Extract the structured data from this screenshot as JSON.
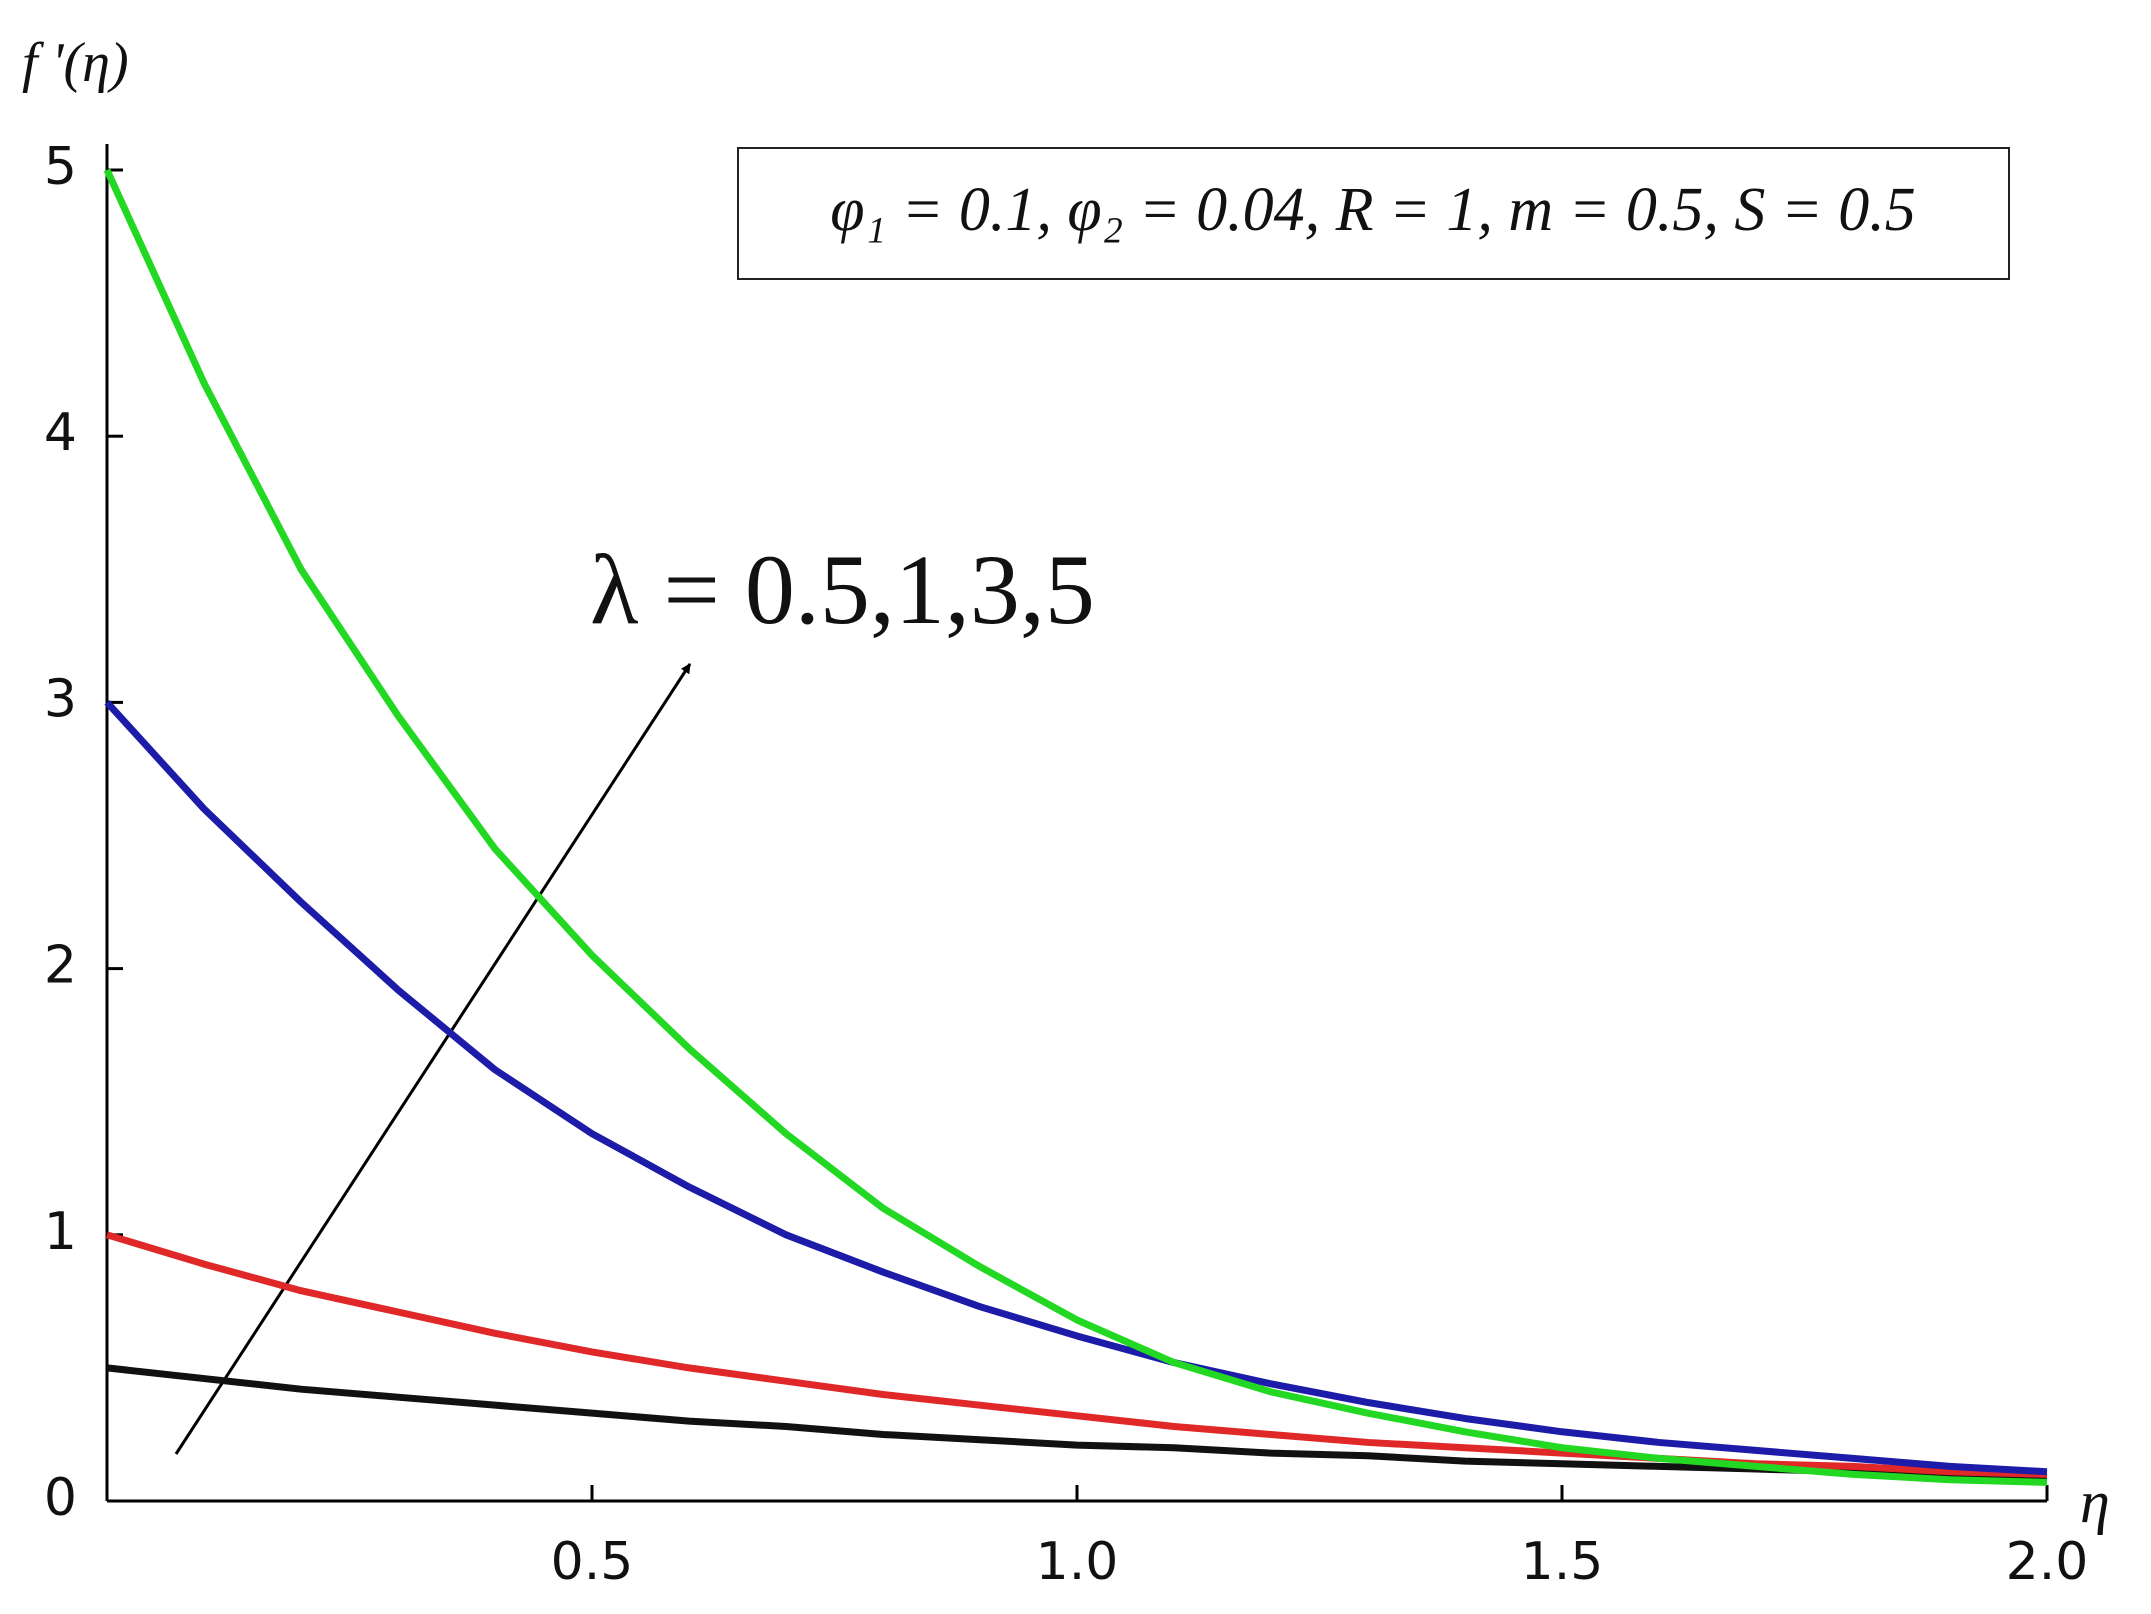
{
  "chart_data": {
    "type": "line",
    "y_label": "f '(η)",
    "x_label": "η",
    "parameters": "φ₁ = 0.1, φ₂ = 0.04, R = 1, m = 0.5, S = 0.5",
    "annotation": "λ = 0.5,1,3,5",
    "x": [
      0,
      0.1,
      0.2,
      0.3,
      0.4,
      0.5,
      0.6,
      0.7,
      0.8,
      0.9,
      1.0,
      1.1,
      1.2,
      1.3,
      1.4,
      1.5,
      1.6,
      1.7,
      1.8,
      1.9,
      2.0
    ],
    "series": [
      {
        "color": "#111111",
        "values": [
          0.5,
          0.46,
          0.42,
          0.39,
          0.36,
          0.33,
          0.3,
          0.28,
          0.25,
          0.23,
          0.21,
          0.2,
          0.18,
          0.17,
          0.15,
          0.14,
          0.13,
          0.12,
          0.11,
          0.1,
          0.09
        ]
      },
      {
        "color": "#e02828",
        "values": [
          1.0,
          0.89,
          0.79,
          0.71,
          0.63,
          0.56,
          0.5,
          0.45,
          0.4,
          0.36,
          0.32,
          0.28,
          0.25,
          0.22,
          0.2,
          0.18,
          0.16,
          0.14,
          0.13,
          0.11,
          0.1
        ]
      },
      {
        "color": "#1c1ca8",
        "values": [
          3.0,
          2.6,
          2.25,
          1.92,
          1.62,
          1.38,
          1.18,
          1.0,
          0.86,
          0.73,
          0.62,
          0.52,
          0.44,
          0.37,
          0.31,
          0.26,
          0.22,
          0.19,
          0.16,
          0.13,
          0.11
        ]
      },
      {
        "color": "#22d822",
        "values": [
          5.0,
          4.2,
          3.5,
          2.95,
          2.45,
          2.05,
          1.7,
          1.38,
          1.1,
          0.88,
          0.68,
          0.52,
          0.41,
          0.33,
          0.26,
          0.2,
          0.16,
          0.13,
          0.1,
          0.08,
          0.07
        ]
      }
    ],
    "xlim": [
      0,
      2
    ],
    "ylim": [
      0,
      5
    ],
    "xticks": [
      0.5,
      {
        "value": 1,
        "label": "1.0"
      },
      1.5,
      {
        "value": 2,
        "label": "2.0"
      }
    ],
    "yticks": [
      0,
      1,
      2,
      3,
      4,
      5
    ]
  }
}
